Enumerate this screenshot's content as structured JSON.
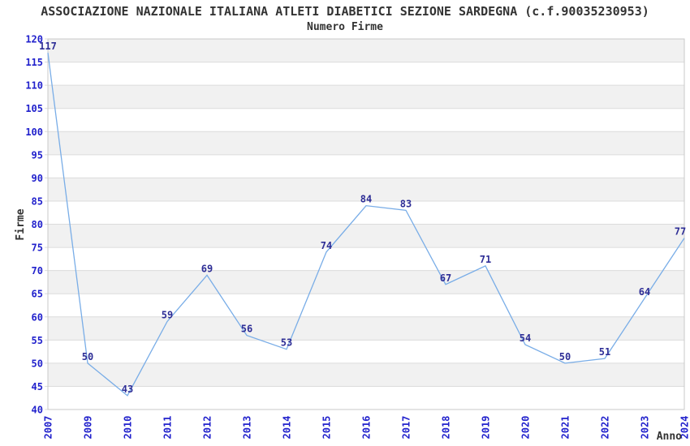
{
  "title": "ASSOCIAZIONE NAZIONALE ITALIANA ATLETI DIABETICI SEZIONE SARDEGNA (c.f.90035230953)",
  "subtitle": "Numero Firme",
  "chart_data": {
    "type": "line",
    "title": "ASSOCIAZIONE NAZIONALE ITALIANA ATLETI DIABETICI SEZIONE SARDEGNA (c.f.90035230953)",
    "subtitle": "Numero Firme",
    "xlabel": "Anno",
    "ylabel": "Firme",
    "categories": [
      "2007",
      "2009",
      "2010",
      "2011",
      "2012",
      "2013",
      "2014",
      "2015",
      "2016",
      "2017",
      "2018",
      "2019",
      "2020",
      "2021",
      "2022",
      "2023",
      "2024"
    ],
    "values": [
      117,
      50,
      43,
      59,
      69,
      56,
      53,
      74,
      84,
      83,
      67,
      71,
      54,
      50,
      51,
      64,
      77
    ],
    "ylim": [
      40,
      120
    ],
    "ytick_step": 5,
    "grid": "horizontal-bands-alternating",
    "legend": "none",
    "data_labels_shown": true,
    "colors": {
      "line": "#79ade7",
      "tick_label": "#2121cc",
      "data_label": "#2e2e96",
      "band_gray": "#f1f1f1",
      "band_white": "#ffffff",
      "gridline": "#dcdcdc",
      "plot_border": "#c9c9c9",
      "text": "#333333",
      "background": "#ffffff"
    }
  }
}
